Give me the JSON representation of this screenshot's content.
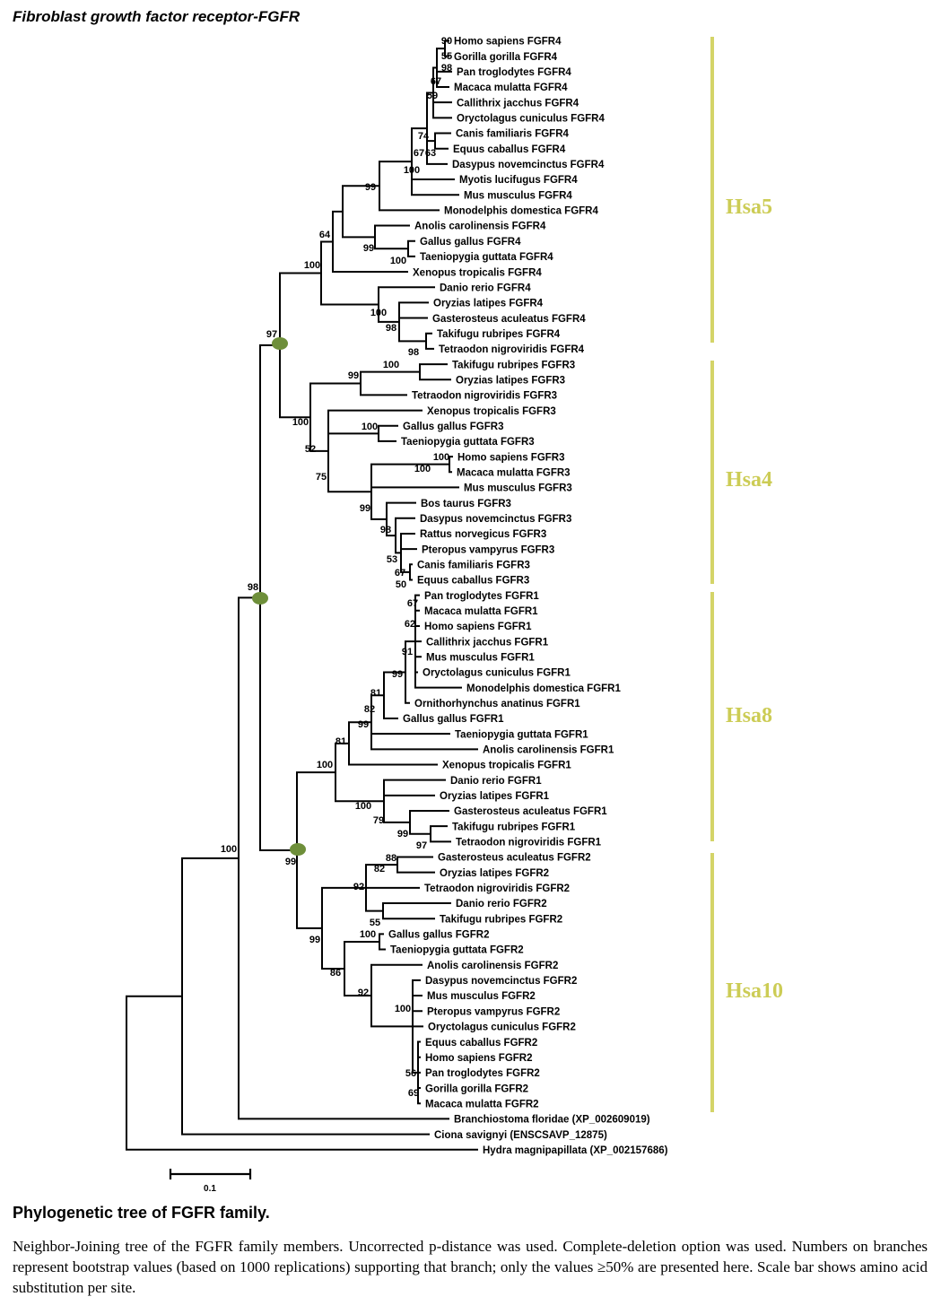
{
  "title": "Fibroblast growth factor receptor-FGFR",
  "caption": {
    "title": "Phylogenetic tree of FGFR family.",
    "body": "Neighbor-Joining tree of the FGFR family members. Uncorrected p-distance was used. Complete-deletion option was used. Numbers on branches represent bootstrap values (based on 1000 replications) supporting that branch; only the values ≥50% are presented here. Scale bar shows amino acid substitution per site."
  },
  "scale_bar": {
    "label": "0.1"
  },
  "colors": {
    "group_bar": "#d4d468",
    "group_label": "#cccc55",
    "node_marker": "#6e8f3a",
    "branch": "#000000"
  },
  "groups": [
    {
      "label": "Hsa5"
    },
    {
      "label": "Hsa4"
    },
    {
      "label": "Hsa8"
    },
    {
      "label": "Hsa10"
    }
  ],
  "leaves": [
    "Homo sapiens FGFR4",
    "Gorilla gorilla FGFR4",
    "Pan troglodytes FGFR4",
    "Macaca mulatta FGFR4",
    "Callithrix jacchus FGFR4",
    "Oryctolagus cuniculus FGFR4",
    "Canis familiaris FGFR4",
    "Equus caballus FGFR4",
    "Dasypus novemcinctus FGFR4",
    "Myotis lucifugus FGFR4",
    "Mus musculus FGFR4",
    "Monodelphis domestica FGFR4",
    "Anolis carolinensis FGFR4",
    "Gallus gallus FGFR4",
    "Taeniopygia guttata FGFR4",
    "Xenopus tropicalis FGFR4",
    "Danio rerio FGFR4",
    "Oryzias latipes FGFR4",
    "Gasterosteus aculeatus FGFR4",
    "Takifugu rubripes FGFR4",
    "Tetraodon nigroviridis FGFR4",
    "Takifugu rubripes FGFR3",
    "Oryzias latipes FGFR3",
    "Tetraodon nigroviridis FGFR3",
    "Xenopus tropicalis FGFR3",
    "Gallus gallus FGFR3",
    "Taeniopygia guttata FGFR3",
    "Homo sapiens FGFR3",
    "Macaca mulatta FGFR3",
    "Mus musculus FGFR3",
    "Bos taurus FGFR3",
    "Dasypus novemcinctus FGFR3",
    "Rattus norvegicus FGFR3",
    "Pteropus vampyrus FGFR3",
    "Canis familiaris FGFR3",
    "Equus caballus FGFR3",
    "Pan troglodytes FGFR1",
    "Macaca mulatta FGFR1",
    "Homo sapiens FGFR1",
    "Callithrix jacchus FGFR1",
    "Mus musculus FGFR1",
    "Oryctolagus cuniculus FGFR1",
    "Monodelphis domestica FGFR1",
    "Ornithorhynchus anatinus FGFR1",
    "Gallus gallus FGFR1",
    "Taeniopygia guttata FGFR1",
    "Anolis carolinensis FGFR1",
    "Xenopus tropicalis FGFR1",
    "Danio rerio FGFR1",
    "Oryzias latipes FGFR1",
    "Gasterosteus aculeatus FGFR1",
    "Takifugu rubripes FGFR1",
    "Tetraodon nigroviridis FGFR1",
    "Gasterosteus aculeatus FGFR2",
    "Oryzias latipes FGFR2",
    "Tetraodon nigroviridis FGFR2",
    "Danio rerio FGFR2",
    "Takifugu rubripes FGFR2",
    "Gallus gallus FGFR2",
    "Taeniopygia guttata FGFR2",
    "Anolis carolinensis FGFR2",
    "Dasypus novemcinctus FGFR2",
    "Mus musculus FGFR2",
    "Pteropus vampyrus FGFR2",
    "Oryctolagus cuniculus FGFR2",
    "Equus caballus FGFR2",
    "Homo sapiens FGFR2",
    "Pan troglodytes FGFR2",
    "Gorilla gorilla FGFR2",
    "Macaca mulatta FGFR2",
    "Branchiostoma floridae (XP_002609019)",
    "Ciona savignyi (ENSCSAVP_12875)",
    "Hydra magnipapillata (XP_002157686)"
  ],
  "bootstrap": [
    "90",
    "55",
    "98",
    "67",
    "59",
    "74",
    "63",
    "67",
    "100",
    "99",
    "99",
    "100",
    "64",
    "100",
    "100",
    "98",
    "98",
    "97",
    "100",
    "99",
    "100",
    "100",
    "52",
    "75",
    "100",
    "100",
    "99",
    "98",
    "53",
    "67",
    "50",
    "98",
    "67",
    "62",
    "91",
    "99",
    "81",
    "82",
    "99",
    "81",
    "100",
    "100",
    "79",
    "99",
    "97",
    "100",
    "88",
    "82",
    "92",
    "55",
    "99",
    "100",
    "86",
    "92",
    "100",
    "56",
    "69",
    "99"
  ]
}
